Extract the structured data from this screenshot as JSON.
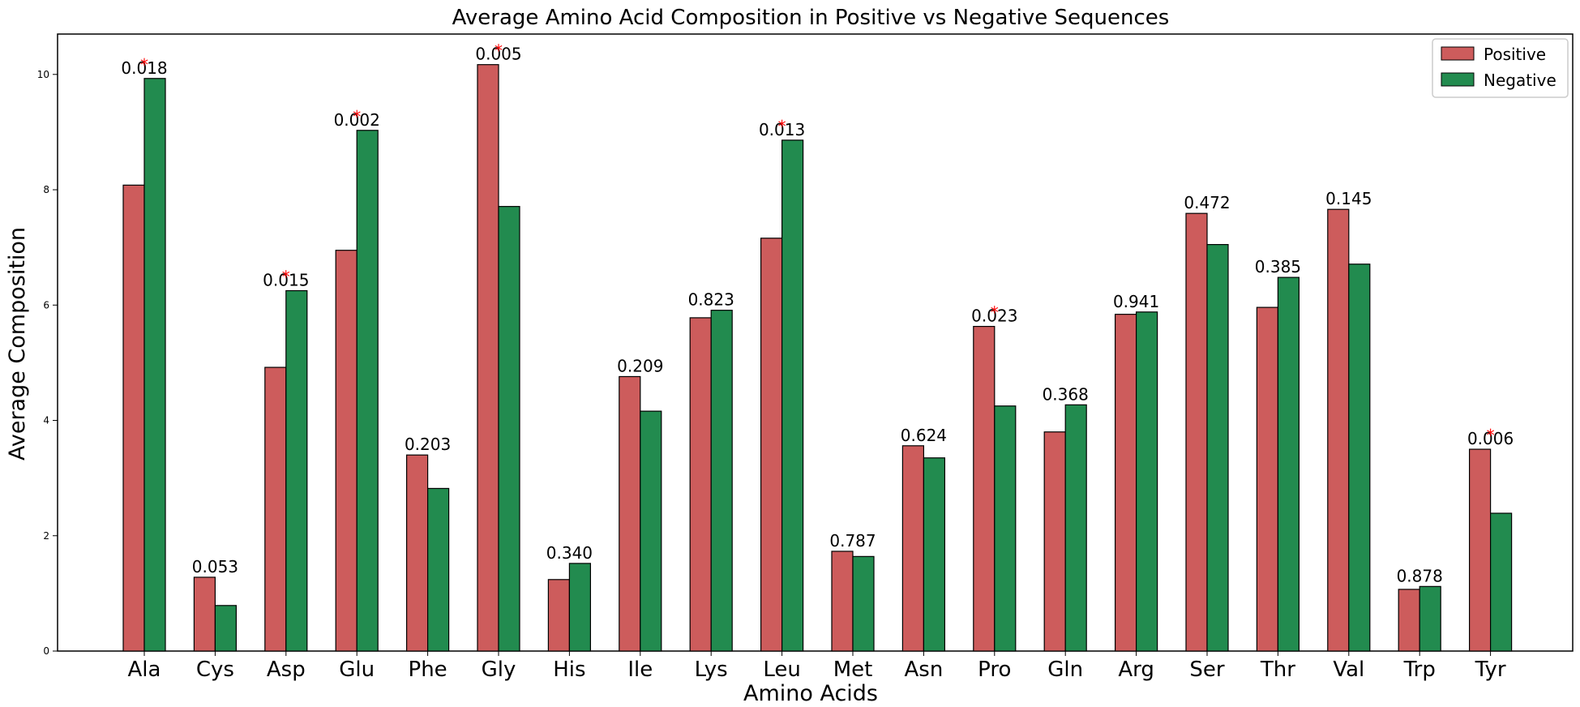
{
  "chart_data": {
    "type": "bar",
    "title": "Average Amino Acid Composition in Positive vs Negative Sequences",
    "xlabel": "Amino Acids",
    "ylabel": "Average Composition",
    "ylim": [
      0,
      10.7
    ],
    "yticks": [
      0,
      2,
      4,
      6,
      8,
      10
    ],
    "legend_position": "top-right",
    "grid": false,
    "categories": [
      "Ala",
      "Cys",
      "Asp",
      "Glu",
      "Phe",
      "Gly",
      "His",
      "Ile",
      "Lys",
      "Leu",
      "Met",
      "Asn",
      "Pro",
      "Gln",
      "Arg",
      "Ser",
      "Thr",
      "Val",
      "Trp",
      "Tyr"
    ],
    "series": [
      {
        "name": "Positive",
        "color": "#cd5c5c",
        "values": [
          8.08,
          1.28,
          4.92,
          6.95,
          3.4,
          10.17,
          1.24,
          4.76,
          5.78,
          7.16,
          1.73,
          3.56,
          5.63,
          3.8,
          5.84,
          7.59,
          5.96,
          7.66,
          1.07,
          3.5
        ]
      },
      {
        "name": "Negative",
        "color": "#228b4f",
        "values": [
          9.93,
          0.79,
          6.25,
          9.03,
          2.82,
          7.71,
          1.52,
          4.16,
          5.91,
          8.86,
          1.64,
          3.35,
          4.25,
          4.27,
          5.88,
          7.05,
          6.48,
          6.71,
          1.12,
          2.39
        ]
      }
    ],
    "p_values": [
      "0.018",
      "0.053",
      "0.015",
      "0.002",
      "0.203",
      "0.005",
      "0.340",
      "0.209",
      "0.823",
      "0.013",
      "0.787",
      "0.624",
      "0.023",
      "0.368",
      "0.941",
      "0.472",
      "0.385",
      "0.145",
      "0.878",
      "0.006"
    ],
    "significant": [
      true,
      false,
      true,
      true,
      false,
      true,
      false,
      false,
      false,
      true,
      false,
      false,
      true,
      false,
      false,
      false,
      false,
      false,
      false,
      true
    ],
    "significance_marker": "*",
    "marker_color": "#ff0000"
  }
}
